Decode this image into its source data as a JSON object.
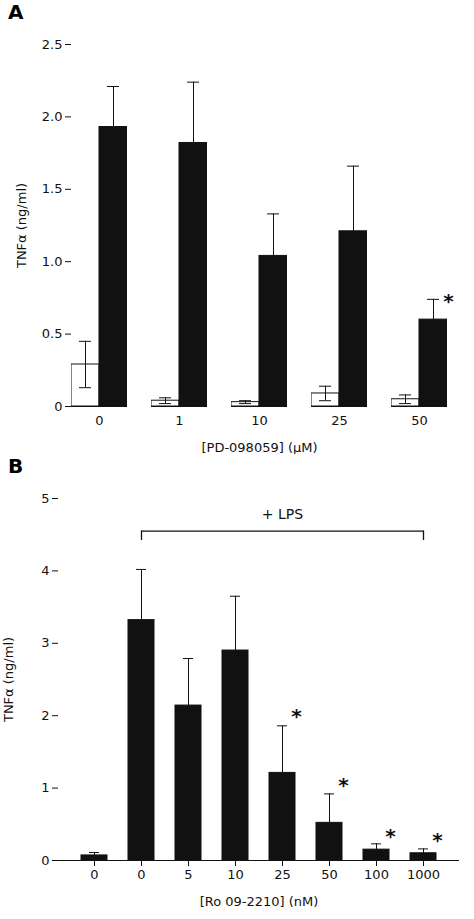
{
  "chart_data": [
    {
      "type": "bar",
      "title": "A",
      "categories": [
        "0",
        "1",
        "10",
        "25",
        "50"
      ],
      "series": [
        {
          "color": "#ffffff",
          "values": [
            0.29,
            0.04,
            0.03,
            0.09,
            0.05
          ],
          "errors": [
            0.16,
            0.02,
            0.01,
            0.05,
            0.03
          ]
        },
        {
          "color": "#111111",
          "values": [
            1.93,
            1.82,
            1.04,
            1.21,
            0.6
          ],
          "errors": [
            0.28,
            0.42,
            0.29,
            0.45,
            0.14
          ]
        }
      ],
      "xlabel": "[PD-098059] (μM)",
      "ylabel": "TNFα (ng/ml)",
      "ylim": [
        0,
        2.5
      ],
      "yticks": [
        0,
        0.5,
        {
          "value": 1.0,
          "label": "1.0"
        },
        1.5,
        {
          "value": 2.0,
          "label": "2.0"
        },
        2.5
      ],
      "annotations": [
        {
          "text": "*",
          "category": "50",
          "y": 0.68
        }
      ]
    },
    {
      "type": "bar",
      "title": "B",
      "categories": [
        "0",
        "0",
        "5",
        "10",
        "25",
        "50",
        "100",
        "1000"
      ],
      "series": [
        {
          "color": "#111111",
          "values": [
            0.07,
            3.32,
            2.14,
            2.9,
            1.21,
            0.52,
            0.15,
            0.1
          ],
          "errors": [
            0.04,
            0.7,
            0.65,
            0.75,
            0.65,
            0.4,
            0.08,
            0.06
          ]
        }
      ],
      "xlabel": "[Ro 09-2210] (nM)",
      "ylabel": "TNFα (ng/ml)",
      "ylim": [
        0,
        5
      ],
      "yticks": [
        0,
        1,
        2,
        3,
        4,
        5
      ],
      "annotations": [
        {
          "text": "*",
          "category": "25",
          "y": 1.9
        },
        {
          "text": "*",
          "category": "50",
          "y": 0.95
        },
        {
          "text": "*",
          "category": "100",
          "y": 0.24
        },
        {
          "text": "*",
          "category": "1000",
          "y": 0.19
        },
        {
          "text": "+ LPS",
          "y": 4.72,
          "bracket_y": 4.55,
          "bracket_from": 1,
          "bracket_to": 7
        }
      ]
    }
  ]
}
